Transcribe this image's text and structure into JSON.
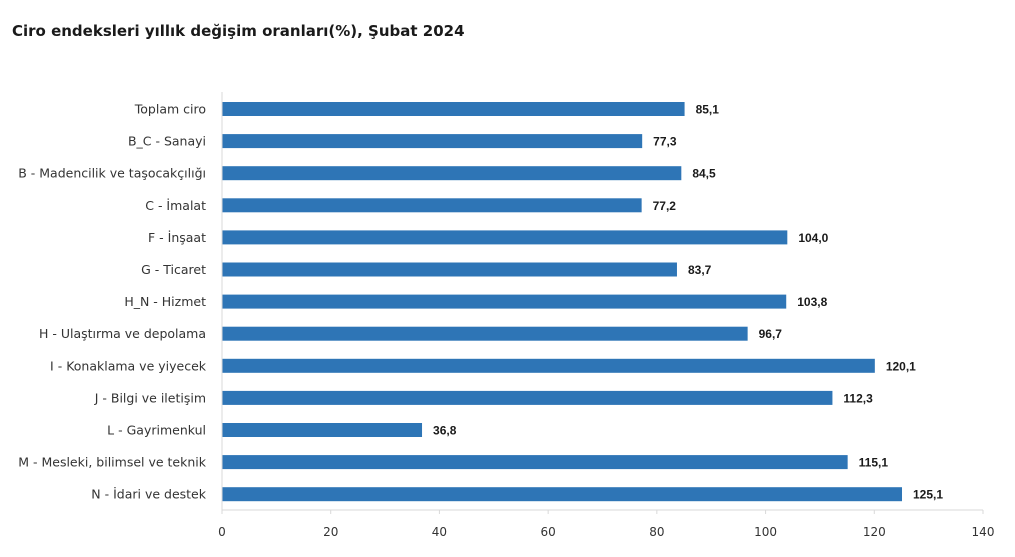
{
  "chart_data": {
    "type": "bar",
    "orientation": "horizontal",
    "title": "Ciro endeksleri yıllık değişim oranları(%), Şubat 2024",
    "xlabel": "",
    "ylabel": "",
    "categories": [
      "Toplam ciro",
      "B_C - Sanayi",
      "B - Madencilik ve taşocakçılığı",
      "C - İmalat",
      "F - İnşaat",
      "G - Ticaret",
      "H_N - Hizmet",
      "H - Ulaştırma ve depolama",
      "I - Konaklama ve yiyecek",
      "J - Bilgi ve iletişim",
      "L - Gayrimenkul",
      "M - Mesleki, bilimsel ve teknik",
      "N - İdari ve destek"
    ],
    "values": [
      85.1,
      77.3,
      84.5,
      77.2,
      104.0,
      83.7,
      103.8,
      96.7,
      120.1,
      112.3,
      36.8,
      115.1,
      125.1
    ],
    "value_labels": [
      "85,1",
      "77,3",
      "84,5",
      "77,2",
      "104,0",
      "83,7",
      "103,8",
      "96,7",
      "120,1",
      "112,3",
      "36,8",
      "115,1",
      "125,1"
    ],
    "xlim": [
      0,
      140
    ],
    "ticks": [
      "0",
      "20",
      "40",
      "60",
      "80",
      "100",
      "120",
      "140"
    ],
    "tick_values": [
      0,
      20,
      40,
      60,
      80,
      100,
      120,
      140
    ],
    "grid": false,
    "legend": "none",
    "bar_color": "#2e75b6"
  }
}
